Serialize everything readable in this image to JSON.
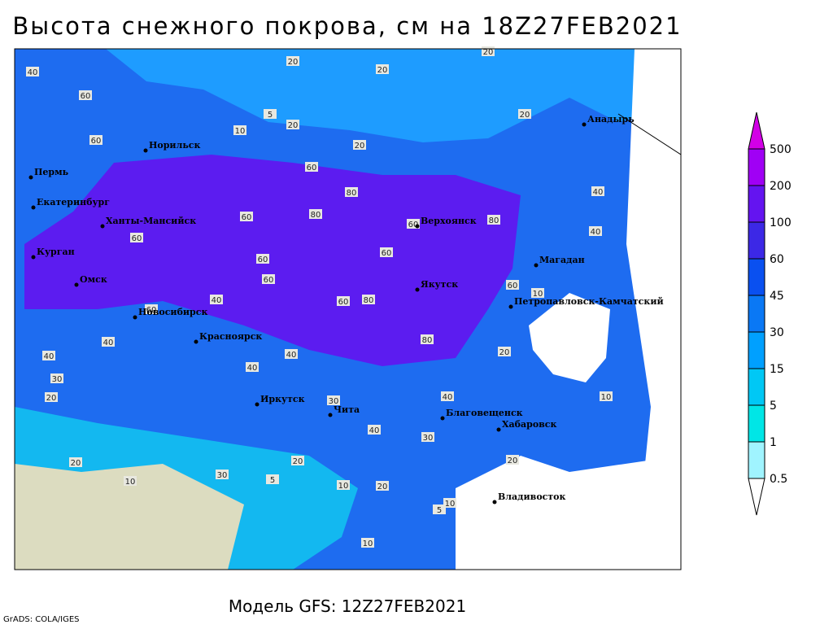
{
  "title": "Высота снежного покрова, см на 18Z27FEB2021",
  "footer": "Модель GFS: 12Z27FEB2021",
  "credit": "GrADS: COLA/IGES",
  "cities": [
    "Норильск",
    "Пермь",
    "Екатеринбург",
    "Ханты-Мансийск",
    "Курган",
    "Омск",
    "Новосибирск",
    "Красноярск",
    "Иркутск",
    "Чита",
    "Якутск",
    "Верхоянск",
    "Магадан",
    "Анадырь",
    "Петропавловск-Камчатский",
    "Благовещенск",
    "Хабаровск",
    "Владивосток"
  ],
  "legend": {
    "levels": [
      0.5,
      1,
      5,
      15,
      30,
      45,
      60,
      100,
      200,
      500
    ],
    "colors": [
      "#ffffff",
      "#a0f4ff",
      "#00e6e6",
      "#00c8f5",
      "#00a0ff",
      "#0a78f5",
      "#0a50f0",
      "#3c28e6",
      "#6414f0",
      "#a000f5",
      "#d200e6"
    ]
  },
  "contour_labels": [
    20,
    20,
    10,
    5,
    20,
    20,
    20,
    20,
    60,
    60,
    40,
    60,
    80,
    60,
    80,
    60,
    80,
    60,
    60,
    60,
    60,
    60,
    80,
    40,
    60,
    80,
    60,
    10,
    20,
    40,
    40,
    40,
    40,
    30,
    20,
    30,
    40,
    40,
    30,
    20,
    10,
    20,
    10,
    10,
    5,
    10,
    20,
    30,
    20,
    10,
    5,
    40,
    40
  ]
}
